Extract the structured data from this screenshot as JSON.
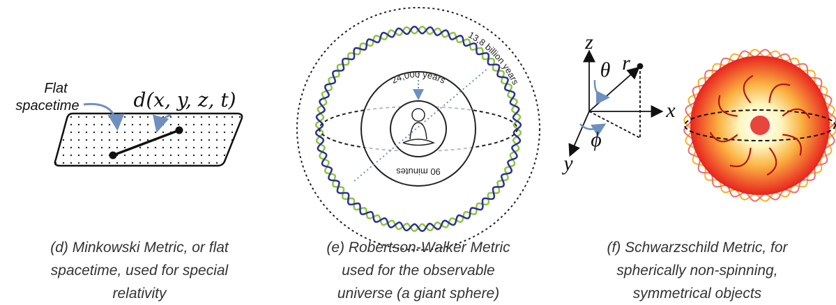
{
  "panels": [
    {
      "labels": {
        "flat": [
          "Flat",
          "spacetime"
        ],
        "function": "d(x, y, z, t)"
      },
      "caption": [
        "(d) Minkowski Metric, or flat",
        "spacetime, used for special",
        "relativity"
      ]
    },
    {
      "labels": {
        "outer": "13,8 billion years",
        "middle": "24,000 years",
        "inner": "90 minutes"
      },
      "caption": [
        "(e) Robertson-Walker Metric",
        "used for the observable",
        "universe (a giant sphere)"
      ]
    },
    {
      "labels": {
        "z": "z",
        "theta": "θ",
        "r": "r",
        "x": "x",
        "phi": "ϕ",
        "y": "y"
      },
      "caption": [
        "(f) Schwarzschild Metric, for",
        "spherically non-spinning,",
        "symmetrical objects"
      ]
    }
  ]
}
